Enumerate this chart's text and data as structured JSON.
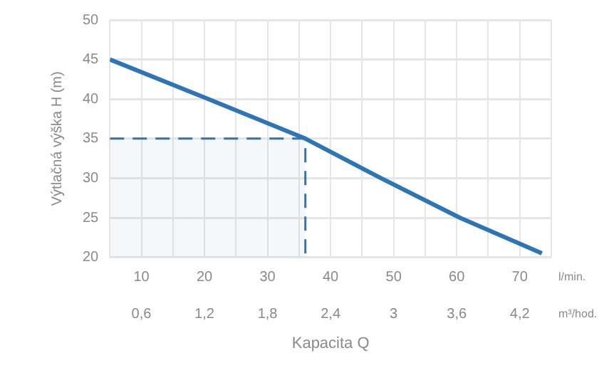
{
  "chart_data": {
    "type": "line",
    "ylabel": "Výtlačná výška H (m)",
    "xlabel": "Kapacita Q",
    "annotations": [
      "l/min.",
      "m³/hod."
    ],
    "xlim": [
      5,
      75
    ],
    "xticks": [
      {
        "value": 5,
        "label": null
      },
      10,
      {
        "value": 15,
        "label": null
      },
      20,
      {
        "value": 25,
        "label": null
      },
      30,
      {
        "value": 35,
        "label": null
      },
      40,
      {
        "value": 45,
        "label": null
      },
      50,
      {
        "value": 55,
        "label": null
      },
      60,
      {
        "value": 65,
        "label": null
      },
      70,
      {
        "value": 75,
        "label": null
      }
    ],
    "x2lim": [
      0.3,
      4.5
    ],
    "x2ticks": [
      {
        "value": 0.6,
        "label": "0,6"
      },
      {
        "value": 1.2,
        "label": "1,2"
      },
      {
        "value": 1.8,
        "label": "1,8"
      },
      {
        "value": 2.4,
        "label": "2,4"
      },
      3,
      {
        "value": 3.6,
        "label": "3,6"
      },
      {
        "value": 4.2,
        "label": "4,2"
      }
    ],
    "ylim": [
      20,
      50
    ],
    "yticks": [
      20,
      25,
      30,
      35,
      40,
      45,
      50
    ],
    "grid": true,
    "legend": false,
    "marker": "none",
    "series": [
      {
        "type": "area",
        "color": "#2e75b6",
        "line_style": "dashed",
        "x": [
          5,
          36,
          36
        ],
        "values": [
          35,
          35,
          20
        ]
      },
      {
        "color": "#2e75b6",
        "line_style": "solid",
        "x": [
          5,
          20,
          36,
          48,
          60.5,
          73.5
        ],
        "values": [
          45,
          40.2,
          35,
          30,
          25,
          20.5
        ]
      }
    ]
  }
}
